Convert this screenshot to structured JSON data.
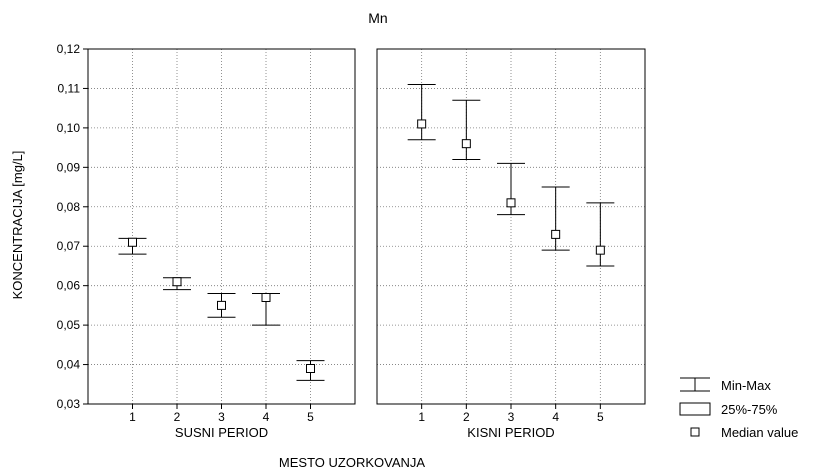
{
  "chart_data": {
    "type": "boxplot",
    "title": "Mn",
    "ylabel": "KONCENTRACIJA [mg/L]",
    "xlabel": "MESTO UZORKOVANJA",
    "ylim": [
      0.03,
      0.12
    ],
    "yticks": [
      "0,03",
      "0,04",
      "0,05",
      "0,06",
      "0,07",
      "0,08",
      "0,09",
      "0,10",
      "0,11",
      "0,12"
    ],
    "grid": true,
    "legend": {
      "position": "bottom-right",
      "items": [
        {
          "symbol": "whisker",
          "label": "Min-Max"
        },
        {
          "symbol": "box",
          "label": "25%-75%"
        },
        {
          "symbol": "square",
          "label": "Median value"
        }
      ]
    },
    "panels": [
      {
        "name": "SUSNI PERIOD",
        "categories": [
          "1",
          "2",
          "3",
          "4",
          "5"
        ],
        "median": [
          0.071,
          0.061,
          0.055,
          0.057,
          0.039
        ],
        "q1": [
          0.0705,
          0.0605,
          0.0545,
          0.0565,
          0.0385
        ],
        "q3": [
          0.0715,
          0.0615,
          0.0555,
          0.0575,
          0.0395
        ],
        "min": [
          0.068,
          0.059,
          0.052,
          0.05,
          0.036
        ],
        "max": [
          0.072,
          0.062,
          0.058,
          0.058,
          0.041
        ]
      },
      {
        "name": "KISNI PERIOD",
        "categories": [
          "1",
          "2",
          "3",
          "4",
          "5"
        ],
        "median": [
          0.101,
          0.096,
          0.081,
          0.073,
          0.069
        ],
        "q1": [
          0.1005,
          0.0955,
          0.0805,
          0.0725,
          0.0685
        ],
        "q3": [
          0.1015,
          0.0965,
          0.0815,
          0.0735,
          0.0695
        ],
        "min": [
          0.097,
          0.092,
          0.078,
          0.069,
          0.065
        ],
        "max": [
          0.111,
          0.107,
          0.091,
          0.085,
          0.081
        ]
      }
    ]
  }
}
